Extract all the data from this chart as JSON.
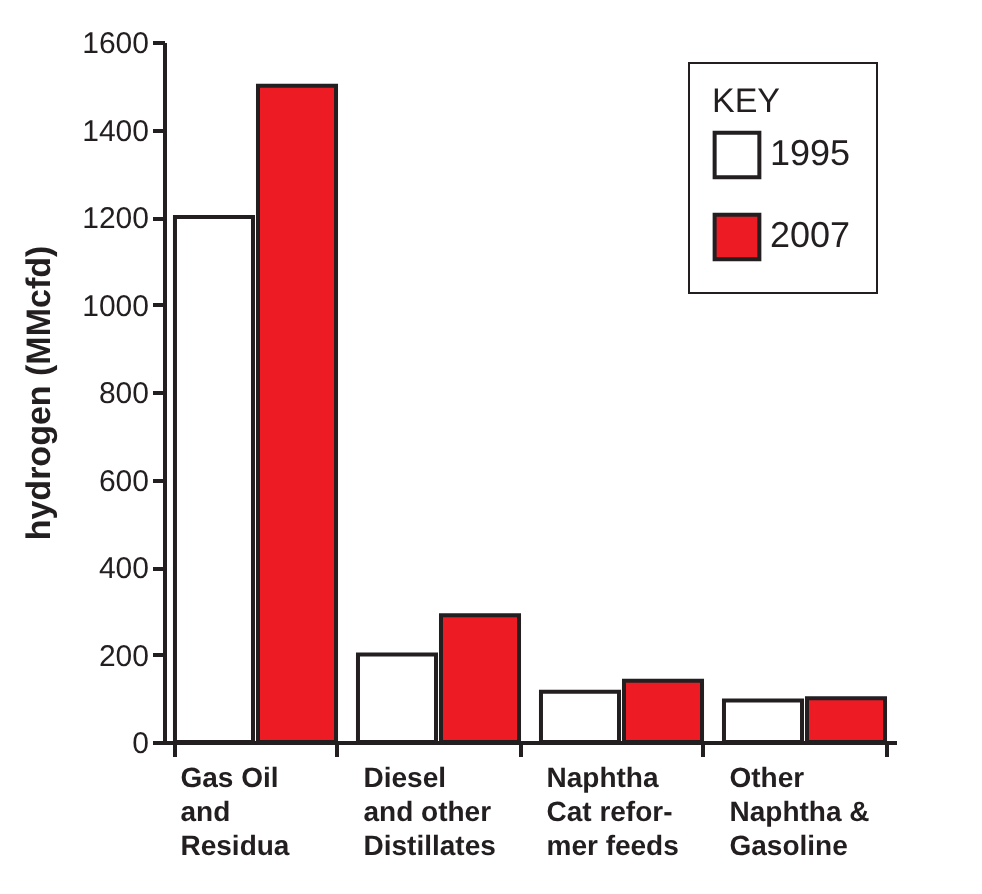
{
  "chart_data": {
    "type": "bar",
    "ylabel": "hydrogen (MMcfd)",
    "legend_title": "KEY",
    "categories": [
      "Gas Oil\nand\nResidua",
      "Diesel\nand other\nDistillates",
      "Naphtha\nCat refor-\nmer feeds",
      "Other\nNaphtha &\nGasoline"
    ],
    "series": [
      {
        "name": "1995",
        "color": "#ffffff",
        "values": [
          1200,
          200,
          115,
          95
        ]
      },
      {
        "name": "2007",
        "color": "#ed1c24",
        "values": [
          1500,
          290,
          140,
          100
        ]
      }
    ],
    "ylim": [
      0,
      1600
    ],
    "yticks": [
      0,
      200,
      400,
      600,
      800,
      1000,
      1200,
      1400,
      1600
    ],
    "grid": false,
    "legend": "top right"
  }
}
